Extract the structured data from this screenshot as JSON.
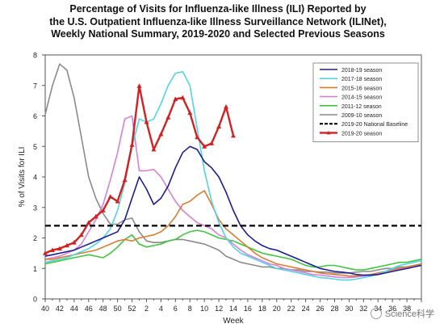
{
  "title_lines": [
    "Percentage of Visits for Influenza-like Illness (ILI) Reported by",
    "the U.S. Outpatient Influenza-like Illness Surveillance Network (ILINet),",
    "Weekly National Summary, 2019-2020 and Selected Previous Seasons"
  ],
  "watermark": "Science科学",
  "chart_data": {
    "type": "line",
    "title": "Percentage of Visits for Influenza-like Illness (ILI) Reported by the U.S. Outpatient Influenza-like Illness Surveillance Network (ILINet), Weekly National Summary, 2019-2020 and Selected Previous Seasons",
    "xlabel": "Week",
    "ylabel": "% of Visits for ILI",
    "ylim": [
      0,
      8
    ],
    "yticks": [
      0,
      1,
      2,
      3,
      4,
      5,
      6,
      7,
      8
    ],
    "x_tick_labels": [
      "40",
      "42",
      "44",
      "46",
      "48",
      "50",
      "52",
      "2",
      "4",
      "6",
      "8",
      "10",
      "12",
      "14",
      "16",
      "18",
      "20",
      "22",
      "24",
      "26",
      "28",
      "30",
      "32",
      "34",
      "36",
      "38"
    ],
    "x_count": 53,
    "legend_position": "top-right",
    "series": [
      {
        "name": "2018-19 season",
        "color": "#1c1c9a",
        "width": 1.6,
        "values": [
          1.4,
          1.45,
          1.5,
          1.55,
          1.6,
          1.7,
          1.8,
          1.9,
          2.0,
          2.1,
          2.2,
          2.6,
          3.3,
          4.0,
          3.6,
          3.1,
          3.3,
          3.7,
          4.3,
          4.8,
          5.0,
          4.9,
          4.5,
          4.3,
          4.0,
          3.5,
          2.9,
          2.4,
          2.1,
          1.9,
          1.75,
          1.65,
          1.6,
          1.5,
          1.4,
          1.3,
          1.2,
          1.1,
          1.0,
          0.95,
          0.9,
          0.88,
          0.85,
          0.8,
          0.78,
          0.78,
          0.8,
          0.85,
          0.9,
          0.95,
          1.0,
          1.05,
          1.1
        ]
      },
      {
        "name": "2017-18 season",
        "color": "#4fd6e6",
        "width": 1.6,
        "values": [
          1.2,
          1.25,
          1.3,
          1.35,
          1.45,
          1.55,
          1.65,
          1.8,
          2.0,
          2.3,
          2.9,
          3.8,
          5.0,
          5.9,
          5.8,
          5.9,
          6.4,
          7.0,
          7.4,
          7.45,
          7.0,
          5.6,
          4.2,
          3.2,
          2.5,
          2.0,
          1.7,
          1.5,
          1.4,
          1.3,
          1.2,
          1.1,
          1.0,
          0.95,
          0.9,
          0.85,
          0.8,
          0.75,
          0.7,
          0.68,
          0.65,
          0.62,
          0.62,
          0.65,
          0.7,
          0.75,
          0.8,
          0.9,
          1.0,
          1.1,
          1.15,
          1.2,
          1.25
        ]
      },
      {
        "name": "2015-16 season",
        "color": "#e07a2e",
        "width": 1.6,
        "values": [
          1.3,
          1.3,
          1.35,
          1.4,
          1.45,
          1.5,
          1.55,
          1.6,
          1.7,
          1.8,
          1.9,
          1.95,
          1.9,
          2.0,
          2.05,
          2.1,
          2.2,
          2.4,
          2.7,
          3.1,
          3.2,
          3.4,
          3.55,
          3.1,
          2.6,
          2.3,
          2.1,
          1.9,
          1.7,
          1.5,
          1.35,
          1.25,
          1.15,
          1.1,
          1.05,
          1.0,
          0.95,
          0.9,
          0.85,
          0.82,
          0.8,
          0.78,
          0.75,
          0.75,
          0.78,
          0.8,
          0.85,
          0.9,
          0.95,
          1.0,
          1.05,
          1.1,
          1.15
        ]
      },
      {
        "name": "2014-15 season",
        "color": "#d97fd8",
        "width": 1.6,
        "values": [
          1.3,
          1.35,
          1.4,
          1.5,
          1.6,
          1.8,
          2.2,
          2.6,
          3.1,
          3.9,
          4.8,
          5.9,
          6.0,
          4.2,
          4.2,
          4.25,
          4.0,
          3.6,
          3.2,
          2.9,
          2.7,
          2.5,
          2.4,
          2.3,
          2.1,
          2.0,
          1.8,
          1.6,
          1.45,
          1.35,
          1.25,
          1.15,
          1.1,
          1.0,
          0.95,
          0.9,
          0.85,
          0.8,
          0.78,
          0.75,
          0.72,
          0.7,
          0.7,
          0.72,
          0.75,
          0.8,
          0.85,
          0.9,
          0.95,
          1.0,
          1.05,
          1.1,
          1.15
        ]
      },
      {
        "name": "2011-12 season",
        "color": "#3cc83c",
        "width": 1.6,
        "values": [
          1.15,
          1.2,
          1.25,
          1.3,
          1.35,
          1.4,
          1.45,
          1.4,
          1.35,
          1.5,
          1.7,
          1.95,
          2.1,
          1.8,
          1.7,
          1.75,
          1.8,
          1.9,
          1.95,
          2.1,
          2.2,
          2.25,
          2.2,
          2.1,
          2.0,
          1.95,
          1.9,
          1.8,
          1.7,
          1.6,
          1.5,
          1.45,
          1.4,
          1.35,
          1.3,
          1.2,
          1.1,
          1.05,
          1.05,
          1.1,
          1.1,
          1.05,
          1.0,
          0.95,
          0.95,
          1.0,
          1.05,
          1.1,
          1.15,
          1.2,
          1.2,
          1.25,
          1.3
        ]
      },
      {
        "name": "2009-10 season",
        "color": "#8a8a8a",
        "width": 1.6,
        "values": [
          6.05,
          7.0,
          7.7,
          7.5,
          6.6,
          5.3,
          4.0,
          3.3,
          2.8,
          2.45,
          2.45,
          2.6,
          2.65,
          2.2,
          1.9,
          1.85,
          1.85,
          1.9,
          1.95,
          1.95,
          1.9,
          1.85,
          1.8,
          1.7,
          1.6,
          1.4,
          1.3,
          1.2,
          1.15,
          1.1,
          1.05,
          1.05,
          1.0,
          1.0,
          0.95,
          0.95,
          0.9,
          0.9,
          0.88,
          0.88,
          0.85,
          0.85,
          0.85,
          0.88,
          0.9,
          0.9,
          0.95,
          1.0,
          1.0,
          1.05,
          1.05,
          1.1,
          1.1
        ]
      },
      {
        "name": "2019-20 National Baseline",
        "color": "#000000",
        "width": 2.2,
        "dashed": true,
        "constant": 2.4
      },
      {
        "name": "2019-20 season",
        "color": "#d42020",
        "width": 2.4,
        "markers": true,
        "values": [
          1.5,
          1.6,
          1.65,
          1.75,
          1.85,
          2.1,
          2.5,
          2.7,
          2.9,
          3.35,
          3.2,
          3.9,
          5.05,
          6.98,
          5.8,
          4.9,
          5.4,
          5.95,
          6.55,
          6.6,
          6.1,
          5.3,
          5.0,
          5.1,
          5.65,
          6.3,
          5.35
        ]
      }
    ]
  }
}
